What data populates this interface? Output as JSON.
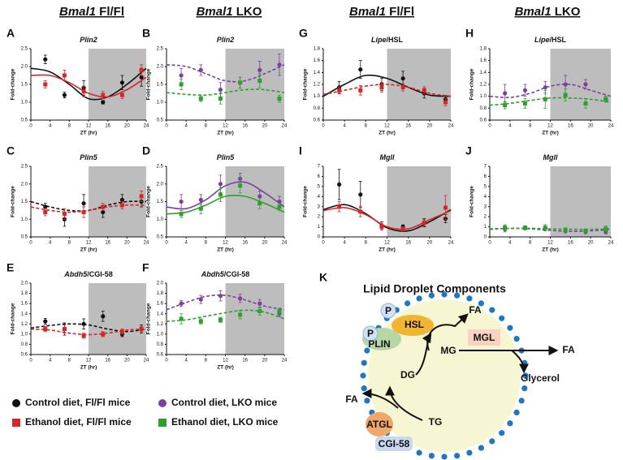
{
  "headers": [
    {
      "gene": "Bmal1",
      "genotype": " Fl/Fl"
    },
    {
      "gene": "Bmal1",
      "genotype": " LKO"
    },
    {
      "gene": "Bmal1",
      "genotype": " Fl/Fl"
    },
    {
      "gene": "Bmal1",
      "genotype": " LKO"
    }
  ],
  "chart_data": [
    {
      "type": "line",
      "label": "A",
      "title": "Plin2",
      "xlabel": "ZT (hr)",
      "ylabel": "Fold-change",
      "x": [
        3,
        7,
        11,
        15,
        19,
        23
      ],
      "fit_x": [
        0,
        4,
        8,
        12,
        16,
        20,
        24
      ],
      "xlim": [
        0,
        24
      ],
      "xticks": [
        0,
        4,
        8,
        12,
        16,
        20,
        24
      ],
      "ylim": [
        0.5,
        2.5
      ],
      "yticks": [
        0.5,
        {
          "value": 1,
          "label": "1.0"
        },
        1.5,
        {
          "value": 2,
          "label": "2.0"
        },
        2.5
      ],
      "shade": [
        12,
        24
      ],
      "series": [
        {
          "name": "Control diet, Fl/Fl mice",
          "color": "#111111",
          "marker": "circle",
          "dashed": false,
          "values": [
            2.2,
            1.2,
            1.4,
            1.0,
            1.55,
            1.7
          ],
          "errors": [
            0.12,
            0.08,
            0.2,
            0.05,
            0.2,
            0.25
          ],
          "fit": [
            1.95,
            1.85,
            1.5,
            1.1,
            1.15,
            1.5,
            1.95
          ]
        },
        {
          "name": "Ethanol diet, Fl/Fl mice",
          "color": "#d62728",
          "marker": "square",
          "dashed": false,
          "values": [
            1.5,
            1.75,
            1.3,
            1.2,
            1.2,
            1.9
          ],
          "errors": [
            0.1,
            0.15,
            0.15,
            0.1,
            0.1,
            0.15
          ],
          "fit": [
            1.75,
            1.75,
            1.55,
            1.25,
            1.15,
            1.35,
            1.7
          ]
        }
      ]
    },
    {
      "type": "line",
      "label": "B",
      "title": "Plin2",
      "xlabel": "ZT (hr)",
      "ylabel": "Fold-change",
      "x": [
        3,
        7,
        11,
        15,
        19,
        23
      ],
      "fit_x": [
        0,
        4,
        8,
        12,
        16,
        20,
        24
      ],
      "xlim": [
        0,
        24
      ],
      "xticks": [
        0,
        4,
        8,
        12,
        16,
        20,
        24
      ],
      "ylim": [
        0.5,
        2.5
      ],
      "yticks": [
        0.5,
        {
          "value": 1,
          "label": "1.0"
        },
        1.5,
        {
          "value": 2,
          "label": "2.0"
        },
        2.5
      ],
      "shade": [
        12,
        24
      ],
      "series": [
        {
          "name": "Control diet, LKO mice",
          "color": "#7b3fa0",
          "marker": "circle",
          "dashed": true,
          "values": [
            1.75,
            1.9,
            1.35,
            1.55,
            1.9,
            2.05
          ],
          "errors": [
            0.2,
            0.15,
            0.2,
            0.15,
            0.25,
            0.3
          ],
          "fit": [
            2.05,
            2.0,
            1.8,
            1.6,
            1.6,
            1.8,
            2.05
          ]
        },
        {
          "name": "Ethanol diet, LKO mice",
          "color": "#2ca02c",
          "marker": "square",
          "dashed": true,
          "values": [
            1.5,
            1.1,
            1.1,
            1.55,
            1.6,
            1.1
          ],
          "errors": [
            0.15,
            0.08,
            0.15,
            0.15,
            0.2,
            0.1
          ],
          "fit": [
            1.27,
            1.22,
            1.2,
            1.27,
            1.35,
            1.35,
            1.27
          ]
        }
      ]
    },
    {
      "type": "line",
      "label": "C",
      "title": "Plin5",
      "xlabel": "ZT (hr)",
      "ylabel": "Fold-change",
      "x": [
        3,
        7,
        11,
        15,
        19,
        23
      ],
      "fit_x": [
        0,
        4,
        8,
        12,
        16,
        20,
        24
      ],
      "xlim": [
        0,
        24
      ],
      "xticks": [
        0,
        4,
        8,
        12,
        16,
        20,
        24
      ],
      "ylim": [
        0.5,
        2.5
      ],
      "yticks": [
        0.5,
        {
          "value": 1,
          "label": "1.0"
        },
        1.5,
        {
          "value": 2,
          "label": "2.0"
        },
        2.5
      ],
      "shade": [
        12,
        24
      ],
      "series": [
        {
          "color": "#111111",
          "marker": "circle",
          "dashed": true,
          "values": [
            1.35,
            1.0,
            1.45,
            1.2,
            1.55,
            1.5
          ],
          "errors": [
            0.1,
            0.2,
            0.25,
            0.15,
            0.15,
            0.15
          ],
          "fit": [
            1.5,
            1.35,
            1.25,
            1.25,
            1.4,
            1.5,
            1.5
          ]
        },
        {
          "color": "#d62728",
          "marker": "square",
          "dashed": true,
          "values": [
            1.2,
            1.15,
            1.2,
            1.35,
            1.4,
            1.65
          ],
          "errors": [
            0.1,
            0.15,
            0.15,
            0.1,
            0.1,
            0.15
          ],
          "fit": [
            1.35,
            1.25,
            1.2,
            1.25,
            1.35,
            1.4,
            1.4
          ]
        }
      ]
    },
    {
      "type": "line",
      "label": "D",
      "title": "Plin5",
      "xlabel": "ZT (hr)",
      "ylabel": "Fold-change",
      "x": [
        3,
        7,
        11,
        15,
        19,
        23
      ],
      "fit_x": [
        0,
        4,
        8,
        12,
        16,
        20,
        24
      ],
      "xlim": [
        0,
        24
      ],
      "xticks": [
        0,
        4,
        8,
        12,
        16,
        20,
        24
      ],
      "ylim": [
        0.5,
        2.5
      ],
      "yticks": [
        0.5,
        {
          "value": 1,
          "label": "1.0"
        },
        1.5,
        {
          "value": 2,
          "label": "2.0"
        },
        2.5
      ],
      "shade": [
        12,
        24
      ],
      "series": [
        {
          "color": "#7b3fa0",
          "marker": "circle",
          "dashed": false,
          "values": [
            1.5,
            1.55,
            2.0,
            2.15,
            1.65,
            1.5
          ],
          "errors": [
            0.2,
            0.15,
            0.25,
            0.15,
            0.15,
            0.15
          ],
          "fit": [
            1.35,
            1.3,
            1.55,
            1.95,
            2.05,
            1.75,
            1.35
          ]
        },
        {
          "color": "#2ca02c",
          "marker": "square",
          "dashed": false,
          "values": [
            1.15,
            1.3,
            1.7,
            1.95,
            1.45,
            1.35
          ],
          "errors": [
            0.1,
            0.15,
            0.2,
            0.2,
            0.15,
            0.1
          ],
          "fit": [
            1.15,
            1.2,
            1.4,
            1.65,
            1.65,
            1.45,
            1.2
          ]
        }
      ]
    },
    {
      "type": "line",
      "label": "E",
      "title": "Abdh5",
      "title_suffix": "/CGI-58",
      "xlabel": "ZT (hr)",
      "ylabel": "Fold-change",
      "x": [
        3,
        7,
        11,
        15,
        19,
        23
      ],
      "fit_x": [
        0,
        4,
        8,
        12,
        16,
        20,
        24
      ],
      "xlim": [
        0,
        24
      ],
      "xticks": [
        0,
        4,
        8,
        12,
        16,
        20,
        24
      ],
      "ylim": [
        0.6,
        2
      ],
      "yticks": [
        0.6,
        0.8,
        {
          "value": 1,
          "label": "1.0"
        },
        1.2,
        1.4,
        1.6,
        1.8,
        {
          "value": 2,
          "label": "2.0"
        }
      ],
      "shade": [
        12,
        24
      ],
      "series": [
        {
          "color": "#111111",
          "marker": "circle",
          "dashed": true,
          "values": [
            1.25,
            1.1,
            1.2,
            1.35,
            1.0,
            1.1
          ],
          "errors": [
            0.06,
            0.12,
            0.1,
            0.1,
            0.05,
            0.08
          ],
          "fit": [
            1.12,
            1.17,
            1.2,
            1.18,
            1.1,
            1.05,
            1.1
          ]
        },
        {
          "color": "#d62728",
          "marker": "square",
          "dashed": true,
          "values": [
            1.1,
            1.1,
            0.97,
            1.0,
            1.05,
            1.1
          ],
          "errors": [
            0.05,
            0.08,
            0.05,
            0.05,
            0.05,
            0.05
          ],
          "fit": [
            1.1,
            1.08,
            1.02,
            0.99,
            1.02,
            1.08,
            1.1
          ]
        }
      ]
    },
    {
      "type": "line",
      "label": "F",
      "title": "Abdh5",
      "title_suffix": "/CGI-58",
      "xlabel": "ZT (hr)",
      "ylabel": "Fold-change",
      "x": [
        3,
        7,
        11,
        15,
        19,
        23
      ],
      "fit_x": [
        0,
        4,
        8,
        12,
        16,
        20,
        24
      ],
      "xlim": [
        0,
        24
      ],
      "xticks": [
        0,
        4,
        8,
        12,
        16,
        20,
        24
      ],
      "ylim": [
        0.6,
        2
      ],
      "yticks": [
        0.6,
        0.8,
        {
          "value": 1,
          "label": "1.0"
        },
        1.2,
        1.4,
        1.6,
        1.8,
        {
          "value": 2,
          "label": "2.0"
        }
      ],
      "shade": [
        12,
        24
      ],
      "series": [
        {
          "color": "#7b3fa0",
          "marker": "circle",
          "dashed": true,
          "values": [
            1.6,
            1.68,
            1.75,
            1.7,
            1.6,
            1.4
          ],
          "errors": [
            0.06,
            0.08,
            0.1,
            0.08,
            0.08,
            0.06
          ],
          "fit": [
            1.48,
            1.62,
            1.74,
            1.76,
            1.67,
            1.55,
            1.48
          ]
        },
        {
          "color": "#2ca02c",
          "marker": "square",
          "dashed": true,
          "values": [
            1.3,
            1.25,
            1.28,
            1.38,
            1.45,
            1.45
          ],
          "errors": [
            0.1,
            0.05,
            0.05,
            0.08,
            0.08,
            0.06
          ],
          "fit": [
            1.25,
            1.28,
            1.35,
            1.42,
            1.47,
            1.43,
            1.3
          ]
        }
      ]
    },
    {
      "type": "line",
      "label": "G",
      "title": "Lipe",
      "title_suffix": "/HSL",
      "xlabel": "ZT (hr)",
      "ylabel": "Fold-change",
      "x": [
        3,
        7,
        11,
        15,
        19,
        23
      ],
      "fit_x": [
        0,
        4,
        8,
        12,
        16,
        20,
        24
      ],
      "xlim": [
        0,
        24
      ],
      "xticks": [
        0,
        4,
        8,
        12,
        16,
        20,
        24
      ],
      "ylim": [
        0.6,
        1.8
      ],
      "yticks": [
        0.6,
        0.8,
        {
          "value": 1,
          "label": "1.0"
        },
        1.2,
        1.4,
        1.6,
        1.8
      ],
      "shade": [
        12,
        24
      ],
      "series": [
        {
          "color": "#111111",
          "marker": "circle",
          "dashed": false,
          "values": [
            1.15,
            1.45,
            1.2,
            1.3,
            1.05,
            0.95
          ],
          "errors": [
            0.1,
            0.15,
            0.1,
            0.12,
            0.08,
            0.06
          ],
          "fit": [
            1.0,
            1.2,
            1.35,
            1.3,
            1.15,
            1.02,
            1.0
          ]
        },
        {
          "color": "#d62728",
          "marker": "square",
          "dashed": true,
          "values": [
            1.1,
            1.1,
            1.15,
            1.15,
            1.1,
            0.9
          ],
          "errors": [
            0.06,
            0.08,
            0.08,
            0.06,
            0.06,
            0.06
          ],
          "fit": [
            1.03,
            1.1,
            1.17,
            1.2,
            1.15,
            1.05,
            1.0
          ]
        }
      ]
    },
    {
      "type": "line",
      "label": "H",
      "title": "Lipe",
      "title_suffix": "/HSL",
      "xlabel": "ZT (hr)",
      "ylabel": "Fold-change",
      "x": [
        3,
        7,
        11,
        15,
        19,
        23
      ],
      "fit_x": [
        0,
        4,
        8,
        12,
        16,
        20,
        24
      ],
      "xlim": [
        0,
        24
      ],
      "xticks": [
        0,
        4,
        8,
        12,
        16,
        20,
        24
      ],
      "ylim": [
        0.6,
        1.8
      ],
      "yticks": [
        0.6,
        0.8,
        {
          "value": 1,
          "label": "1.0"
        },
        1.2,
        1.4,
        1.6,
        1.8
      ],
      "shade": [
        12,
        24
      ],
      "series": [
        {
          "color": "#7b3fa0",
          "marker": "circle",
          "dashed": true,
          "values": [
            1.05,
            1.1,
            1.15,
            1.2,
            1.2,
            0.95
          ],
          "errors": [
            0.15,
            0.1,
            0.1,
            0.15,
            0.08,
            0.05
          ],
          "fit": [
            1.0,
            0.98,
            1.05,
            1.17,
            1.2,
            1.1,
            1.0
          ]
        },
        {
          "color": "#2ca02c",
          "marker": "square",
          "dashed": true,
          "values": [
            0.85,
            0.88,
            0.95,
            1.02,
            0.88,
            0.95
          ],
          "errors": [
            0.06,
            0.08,
            0.15,
            0.1,
            0.08,
            0.05
          ],
          "fit": [
            0.85,
            0.88,
            0.93,
            0.97,
            0.97,
            0.95,
            0.9
          ]
        }
      ]
    },
    {
      "type": "line",
      "label": "I",
      "title": "Mgll",
      "xlabel": "ZT (hr)",
      "ylabel": "Fold-change",
      "x": [
        3,
        7,
        11,
        15,
        19,
        23
      ],
      "fit_x": [
        0,
        4,
        8,
        12,
        16,
        20,
        24
      ],
      "xlim": [
        0,
        24
      ],
      "xticks": [
        0,
        4,
        8,
        12,
        16,
        20,
        24
      ],
      "ylim": [
        0,
        7
      ],
      "yticks": [
        0,
        1,
        2,
        3,
        4,
        5,
        6,
        7
      ],
      "shade": [
        12,
        24
      ],
      "series": [
        {
          "color": "#111111",
          "marker": "circle",
          "dashed": false,
          "values": [
            5.2,
            4.2,
            1.1,
            1.0,
            1.4,
            1.8
          ],
          "errors": [
            1.5,
            1.3,
            0.4,
            0.2,
            0.4,
            0.4
          ],
          "fit": [
            2.7,
            3.2,
            2.3,
            0.9,
            0.6,
            1.5,
            2.7
          ]
        },
        {
          "color": "#d62728",
          "marker": "square",
          "dashed": false,
          "values": [
            3.0,
            2.5,
            1.0,
            0.8,
            1.4,
            2.9
          ],
          "errors": [
            0.5,
            0.5,
            0.3,
            0.2,
            0.3,
            1.2
          ],
          "fit": [
            2.6,
            2.9,
            2.2,
            1.0,
            0.8,
            1.7,
            2.6
          ]
        }
      ]
    },
    {
      "type": "line",
      "label": "J",
      "title": "Mgll",
      "xlabel": "ZT (hr)",
      "ylabel": "Fold-change",
      "x": [
        3,
        7,
        11,
        15,
        19,
        23
      ],
      "fit_x": [
        0,
        4,
        8,
        12,
        16,
        20,
        24
      ],
      "xlim": [
        0,
        24
      ],
      "xticks": [
        0,
        4,
        8,
        12,
        16,
        20,
        24
      ],
      "ylim": [
        0,
        7
      ],
      "yticks": [
        0,
        1,
        2,
        3,
        4,
        5,
        6,
        7
      ],
      "shade": [
        12,
        24
      ],
      "series": [
        {
          "color": "#7b3fa0",
          "marker": "circle",
          "dashed": true,
          "values": [
            0.8,
            0.9,
            0.9,
            0.6,
            0.5,
            0.5
          ],
          "errors": [
            0.3,
            0.2,
            0.3,
            0.2,
            0.2,
            0.2
          ],
          "fit": [
            0.75,
            0.85,
            0.8,
            0.65,
            0.55,
            0.6,
            0.75
          ]
        },
        {
          "color": "#2ca02c",
          "marker": "square",
          "dashed": true,
          "values": [
            0.9,
            0.9,
            0.9,
            0.7,
            0.6,
            0.8
          ],
          "errors": [
            0.3,
            0.2,
            0.3,
            0.2,
            0.2,
            0.3
          ],
          "fit": [
            0.8,
            0.85,
            0.85,
            0.8,
            0.75,
            0.75,
            0.8
          ]
        }
      ]
    }
  ],
  "diagram": {
    "label": "K",
    "title": "Lipid Droplet Components",
    "nodes": [
      "P",
      "P",
      "HSL",
      "PLIN",
      "FA",
      "MG",
      "MGL",
      "FA",
      "Glycerol",
      "DG",
      "FA",
      "ATGL",
      "TG",
      "CGI-58"
    ]
  }
}
